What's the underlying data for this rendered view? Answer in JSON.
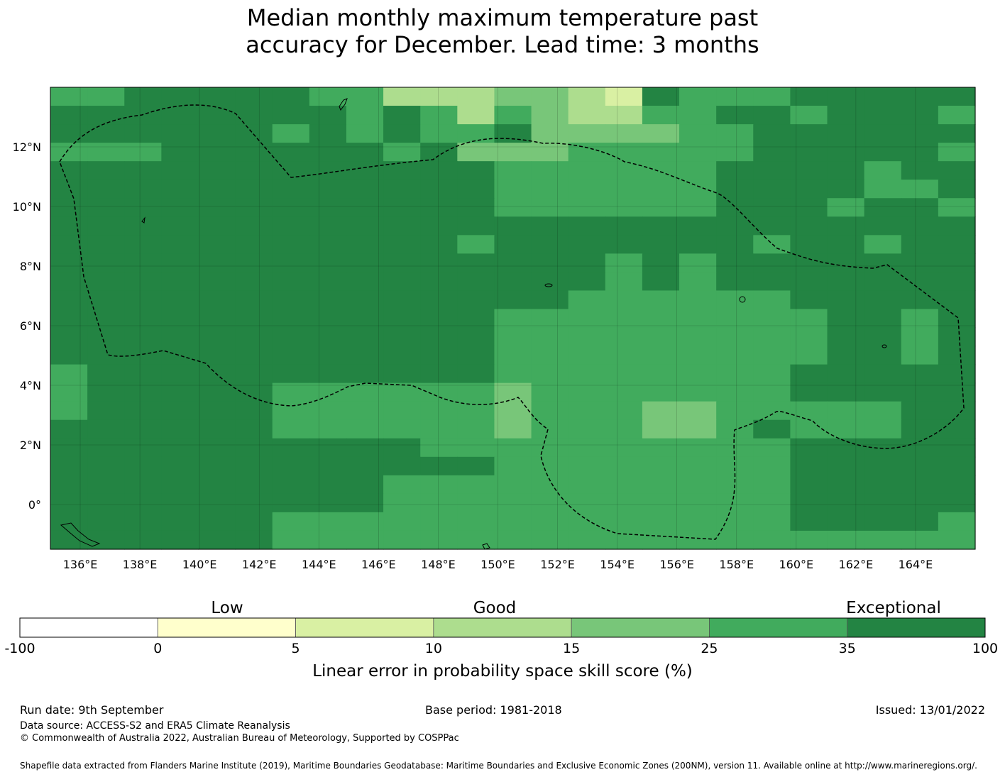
{
  "title": {
    "line1": "Median monthly maximum temperature past",
    "line2": "accuracy for December. Lead time: 3 months"
  },
  "map": {
    "lon_labels": [
      "136°E",
      "138°E",
      "140°E",
      "142°E",
      "144°E",
      "146°E",
      "148°E",
      "150°E",
      "152°E",
      "154°E",
      "156°E",
      "158°E",
      "160°E",
      "162°E",
      "164°E"
    ],
    "lat_labels": [
      "12°N",
      "10°N",
      "8°N",
      "6°N",
      "4°N",
      "2°N",
      "0°"
    ],
    "lon_values": [
      136,
      138,
      140,
      142,
      144,
      146,
      148,
      150,
      152,
      154,
      156,
      158,
      160,
      162,
      164
    ],
    "lat_values": [
      12,
      10,
      8,
      6,
      4,
      2,
      0
    ],
    "extent": {
      "lon": [
        135,
        166
      ],
      "lat": [
        -1.5,
        14
      ]
    },
    "grid_lines": true,
    "cell_size_deg": 0.8333
  },
  "colorbar": {
    "categories": [
      "Low",
      "Good",
      "Exceptional"
    ],
    "ticks": [
      "-100",
      "0",
      "5",
      "10",
      "15",
      "25",
      "35",
      "100"
    ],
    "colors": [
      "#ffffff",
      "#ffffcc",
      "#d9f0a3",
      "#addd8e",
      "#78c679",
      "#41ab5d",
      "#238443"
    ],
    "label": "Linear error in probability space skill score (%)"
  },
  "footer": {
    "run_date": "Run date: 9th September",
    "base_period": "Base period: 1981-2018",
    "issued": "Issued: 13/01/2022",
    "data_source": "Data source: ACCESS-S2 and ERA5 Climate Reanalysis",
    "copyright": "© Commonwealth of Australia 2022, Australian Bureau of Meteorology, Supported by COSPPac",
    "shapefile": "Shapefile data extracted from Flanders Marine Institute (2019), Maritime Boundaries Geodatabase: Maritime Boundaries and Exclusive Economic Zones (200NM), version 11. Available online at http://www.marineregions.org/."
  },
  "chart_data": {
    "type": "heatmap",
    "title": "Median monthly maximum temperature past accuracy for December. Lead time: 3 months",
    "xlabel": "",
    "ylabel": "",
    "colorbar_label": "Linear error in probability space skill score (%)",
    "bins": [
      -100,
      0,
      5,
      10,
      15,
      25,
      35,
      100
    ],
    "bin_colors": [
      "#ffffff",
      "#ffffcc",
      "#d9f0a3",
      "#addd8e",
      "#78c679",
      "#41ab5d",
      "#238443"
    ],
    "xlim": [
      135,
      166
    ],
    "ylim": [
      -1.5,
      14
    ],
    "grid_rows_north_to_south": [
      "5566666553334432655566666",
      "6666666656535433556656665",
      "6666665656556444455666666",
      "5556666665644455555666665",
      "6666666666665555556666566",
      "6666666666665555556666556",
      "6666666666665555556665665",
      "6666666666666666666666666",
      "6666666666656666666566566",
      "6666666666666665656666666",
      "6666666666666665656666666",
      "6666666666666655555566666",
      "6666666666665555555556656",
      "6666666666665555555556656",
      "6666666666665555555556656",
      "5666666666665555555566666",
      "5666665555554555555566666",
      "5666665555554555445555566",
      "6666665555554555445655566",
      "6666666666555555555566666",
      "6666666666665555555566666",
      "6666666665555555555566666",
      "6666666665555555555566666",
      "6666665555555555555566665",
      "6666665555555555555555555"
    ]
  }
}
